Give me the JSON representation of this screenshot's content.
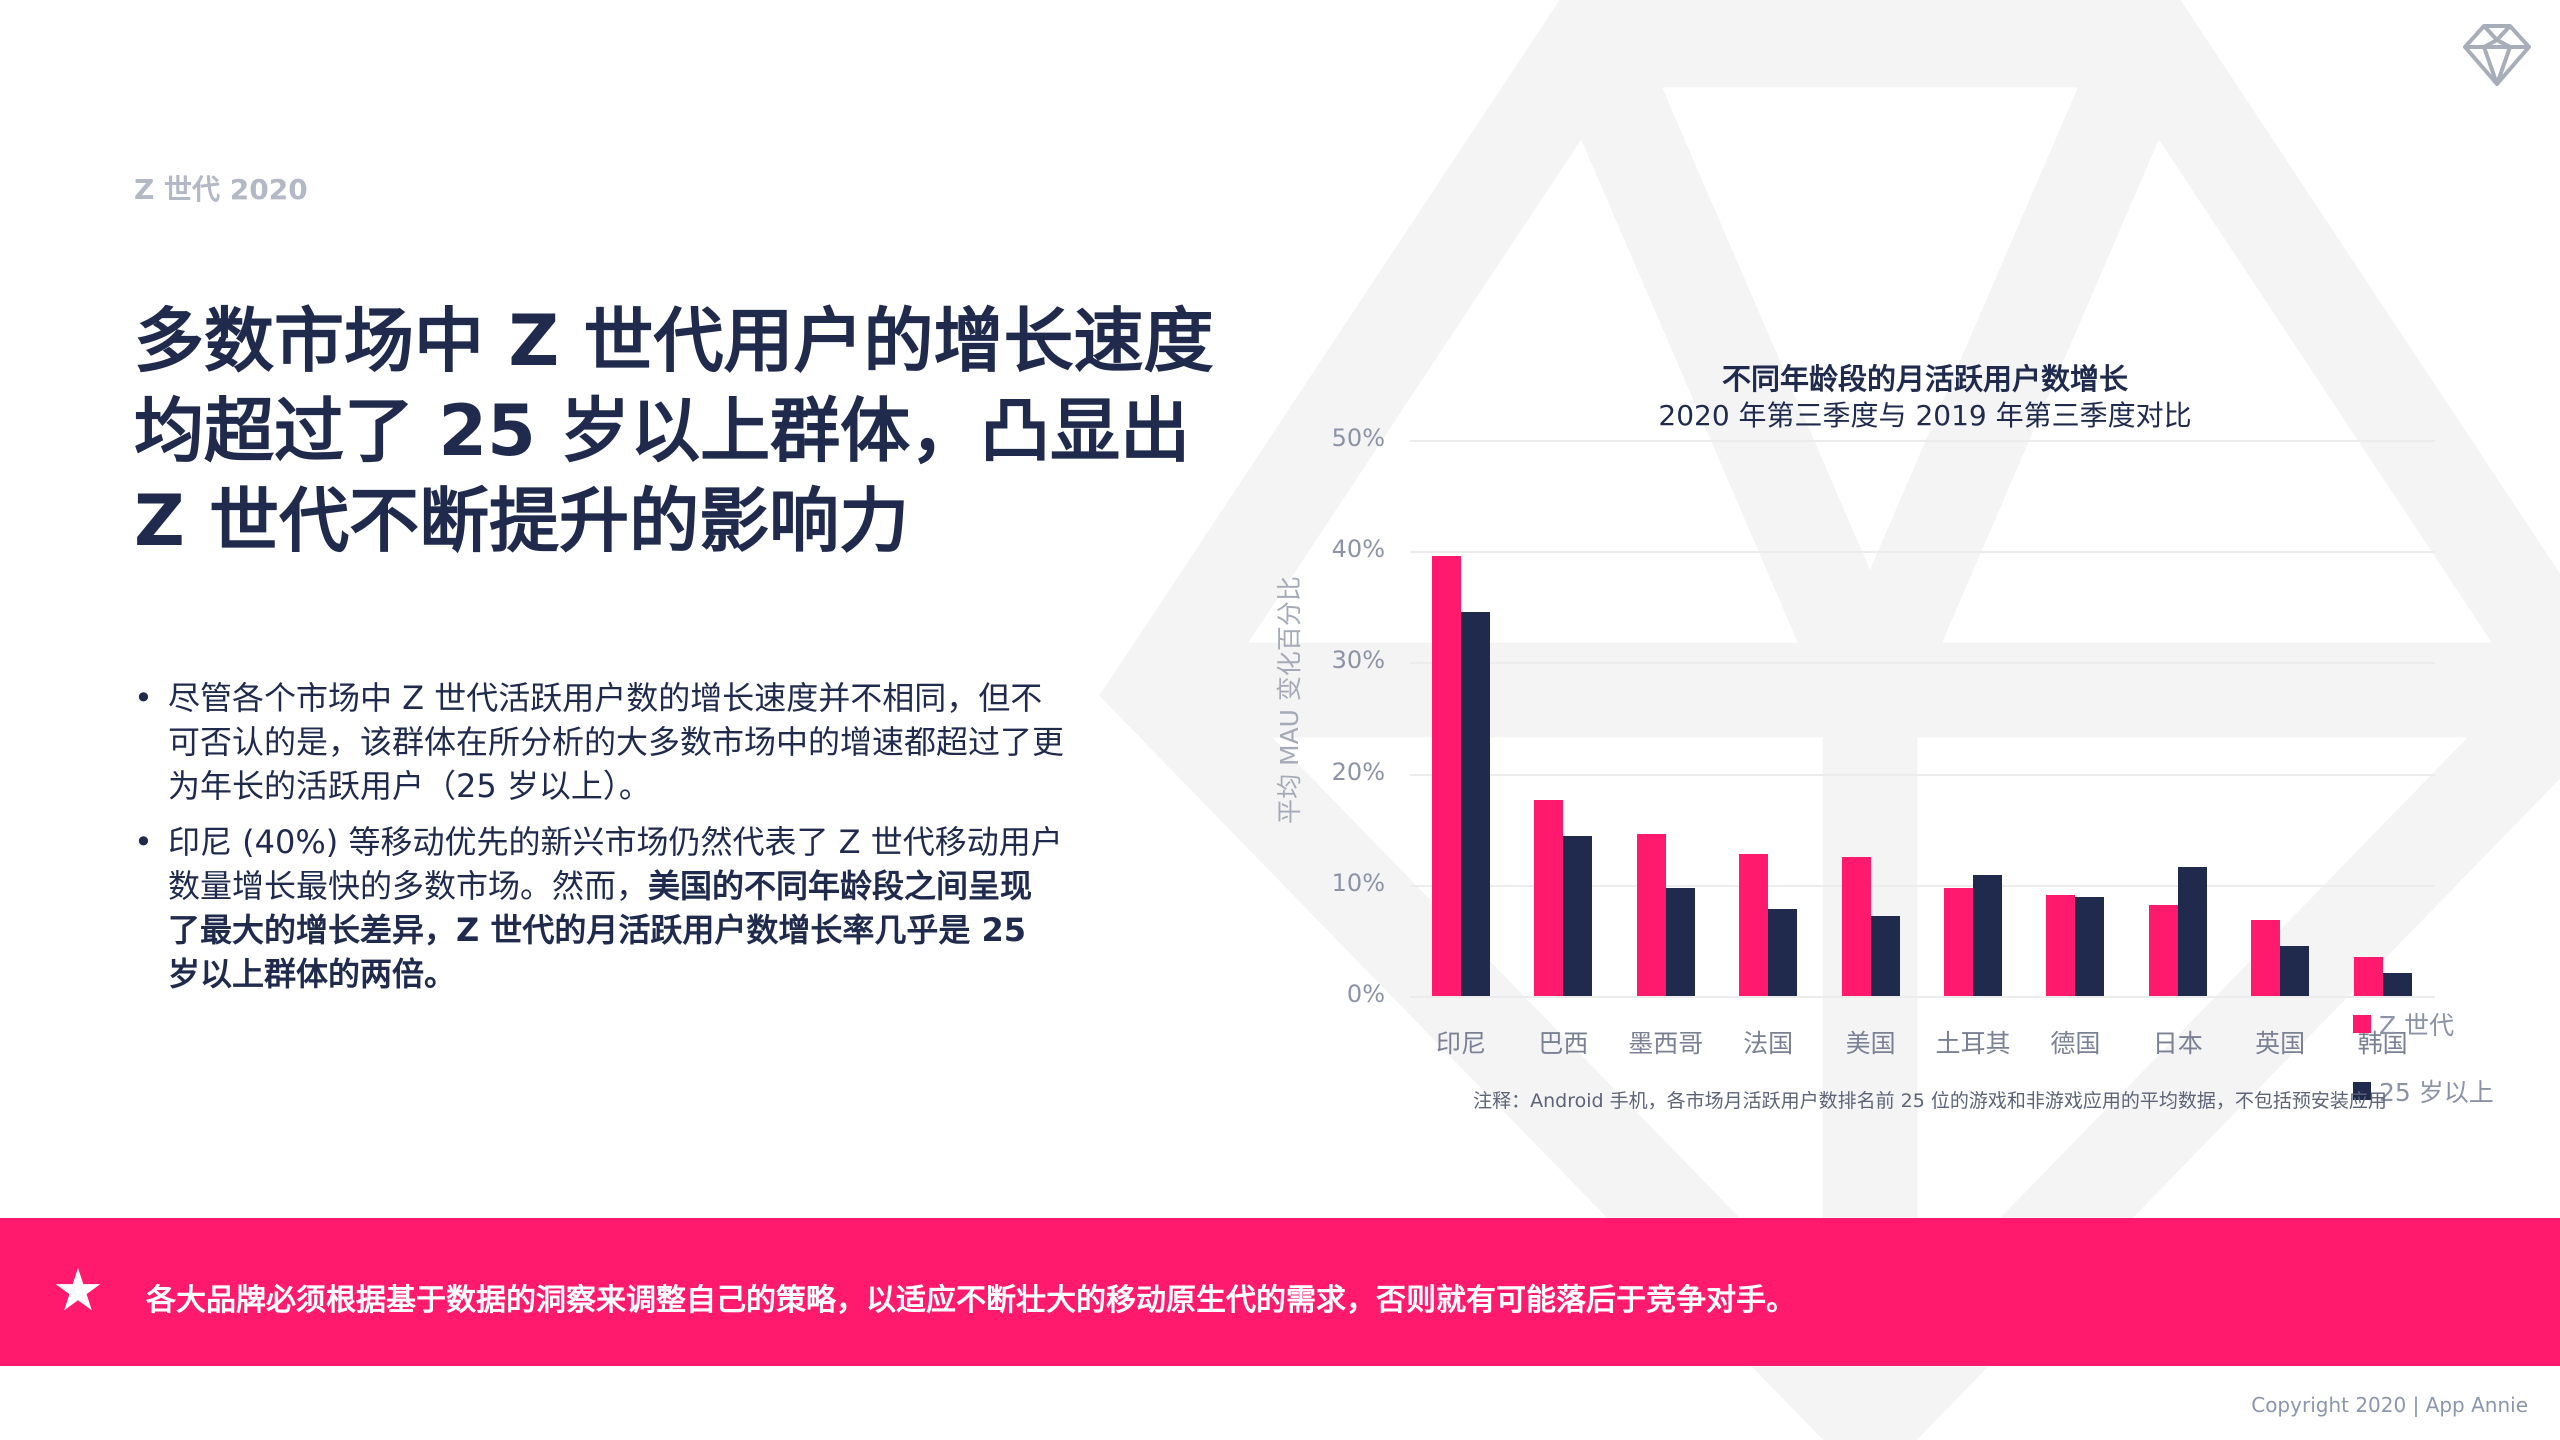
{
  "header": {
    "kicker": "Z 世代 2020",
    "logo_icon": "diamond-icon"
  },
  "headline": "多数市场中 Z 世代用户的增长速度均超过了 25 岁以上群体，凸显出 Z 世代不断提升的影响力",
  "bullets": [
    {
      "marker": "•",
      "text": "尽管各个市场中 Z 世代活跃用户数的增长速度并不相同，但不可否认的是，该群体在所分析的大多数市场中的增速都超过了更为年长的活跃用户（25 岁以上）。"
    },
    {
      "marker": "•",
      "text_plain": "印尼 (40%) 等移动优先的新兴市场仍然代表了 Z 世代移动用户数量增长最快的多数市场。然而，",
      "text_bold": "美国的不同年龄段之间呈现了最大的增长差异，Z 世代的月活跃用户数增长率几乎是 25 岁以上群体的两倍。"
    }
  ],
  "chart_data": {
    "type": "bar",
    "title": "不同年龄段的月活跃用户数增长",
    "subtitle": "2020 年第三季度与 2019 年第三季度对比",
    "xlabel": "",
    "ylabel": "平均 MAU 变化百分比",
    "ylim": [
      0,
      50
    ],
    "yticks": [
      "0%",
      "10%",
      "20%",
      "30%",
      "40%",
      "50%"
    ],
    "grid": true,
    "legend_position": "right",
    "categories": [
      "印尼",
      "巴西",
      "墨西哥",
      "法国",
      "美国",
      "土耳其",
      "德国",
      "日本",
      "英国",
      "韩国"
    ],
    "series": [
      {
        "name": "Z 世代",
        "color": "#ff1a6d",
        "values": [
          39.6,
          17.6,
          14.6,
          12.8,
          12.5,
          9.7,
          9.1,
          8.2,
          6.8,
          3.5
        ]
      },
      {
        "name": "25 岁以上",
        "color": "#1f2a4d",
        "values": [
          34.5,
          14.4,
          9.7,
          7.8,
          7.2,
          10.9,
          8.9,
          11.6,
          4.5,
          2.1
        ]
      }
    ],
    "note": "注释：Android 手机，各市场月活跃用户数排名前 25 位的游戏和非游戏应用的平均数据，不包括预安装应用"
  },
  "banner": {
    "icon": "star-icon",
    "text": "各大品牌必须根据基于数据的洞察来调整自己的策略，以适应不断壮大的移动原生代的需求，否则就有可能落后于竞争对手。"
  },
  "footer": {
    "copyright": "Copyright 2020  |  App Annie"
  }
}
